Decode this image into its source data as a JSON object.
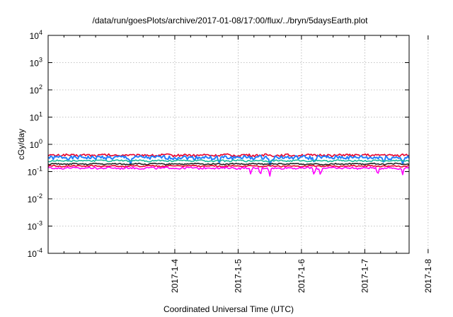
{
  "chart_data": {
    "type": "line",
    "title": "/data/run/goesPlots/archive/2017-01-08/17:00/flux/../bryn/5daysEarth.plot",
    "xlabel": "Coordinated Universal Time (UTC)",
    "ylabel": "cGy/day",
    "yscale": "log",
    "ylim": [
      0.0001,
      10000
    ],
    "xlim": [
      2.0,
      7.7
    ],
    "x_unit": "days (January 2017)",
    "x_ticks": [
      {
        "value": 4,
        "label": "2017-1-4"
      },
      {
        "value": 5,
        "label": "2017-1-5"
      },
      {
        "value": 6,
        "label": "2017-1-6"
      },
      {
        "value": 7,
        "label": "2017-1-7"
      },
      {
        "value": 8,
        "label": "2017-1-8"
      }
    ],
    "y_ticks": [
      {
        "base": "10",
        "exp": "-4"
      },
      {
        "base": "10",
        "exp": "-3"
      },
      {
        "base": "10",
        "exp": "-2"
      },
      {
        "base": "10",
        "exp": "-1"
      },
      {
        "base": "10",
        "exp": "0"
      },
      {
        "base": "10",
        "exp": "1"
      },
      {
        "base": "10",
        "exp": "2"
      },
      {
        "base": "10",
        "exp": "3"
      },
      {
        "base": "10",
        "exp": "4"
      }
    ],
    "grid": true,
    "series": [
      {
        "color": "#e8002a",
        "base": 0.4,
        "noise": 0.1,
        "dips": []
      },
      {
        "color": "#1f7fff",
        "base": 0.33,
        "noise": 0.16,
        "dips": [
          [
            3.3,
            0.55
          ],
          [
            4.7,
            0.5
          ],
          [
            5.5,
            0.5
          ],
          [
            6.2,
            0.6
          ],
          [
            7.3,
            0.55
          ],
          [
            7.6,
            0.5
          ]
        ]
      },
      {
        "color": "#1abc9c",
        "base": 0.25,
        "noise": 0.06,
        "dips": []
      },
      {
        "color": "#222222",
        "base": 0.19,
        "noise": 0.05,
        "dips": []
      },
      {
        "color": "#e8002a",
        "base": 0.16,
        "noise": 0.05,
        "dips": []
      },
      {
        "color": "#ff00ff",
        "base": 0.135,
        "noise": 0.08,
        "dips": [
          [
            5.2,
            0.5
          ],
          [
            5.35,
            0.55
          ],
          [
            5.5,
            0.5
          ],
          [
            6.2,
            0.5
          ],
          [
            6.3,
            0.55
          ],
          [
            7.2,
            0.55
          ],
          [
            7.6,
            0.6
          ]
        ]
      }
    ]
  }
}
